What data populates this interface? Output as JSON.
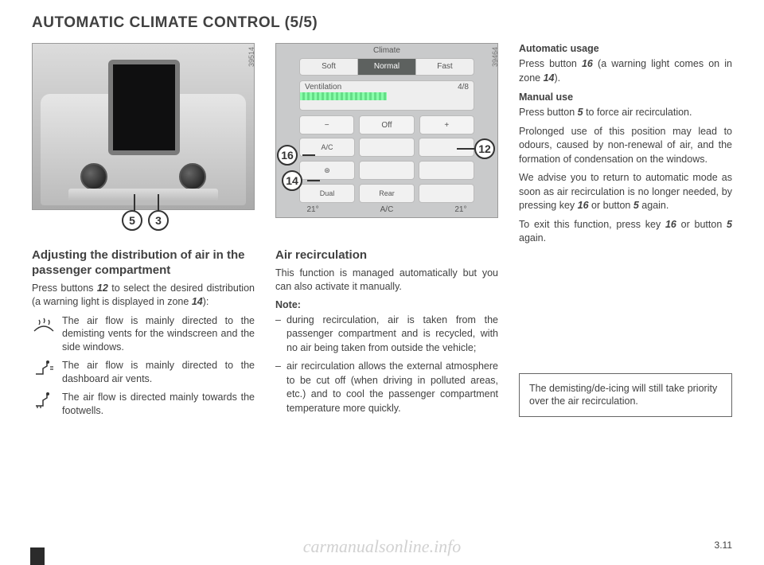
{
  "page": {
    "title": "AUTOMATIC CLIMATE CONTROL (5/5)",
    "number": "3.11",
    "watermark": "carmanualsonline.info"
  },
  "fig_photo": {
    "tag": "39514",
    "callouts": {
      "c5": "5",
      "c3": "3"
    }
  },
  "fig_screen": {
    "tag": "39464",
    "title": "Climate",
    "tabs": {
      "soft": "Soft",
      "normal": "Normal",
      "fast": "Fast"
    },
    "vent": {
      "label": "Ventilation",
      "fraction": "4/8"
    },
    "offrow": {
      "minus": "−",
      "off": "Off",
      "plus": "+"
    },
    "gridLabels": {
      "ac": "A/C",
      "auto": "⊛",
      "dual": "Dual",
      "rear": "Rear"
    },
    "footer": {
      "tL": "21°",
      "tR": "21°",
      "mid": "A/C"
    },
    "callouts": {
      "c16": "16",
      "c12": "12",
      "c14": "14"
    }
  },
  "col1": {
    "heading": "Adjusting the distribution of air in the passenger compartment",
    "para": "Press buttons <span class=\"itnum\">12</span> to select the desired distribution (a warning light is displayed in zone <span class=\"itnum\">14</span>):",
    "r1": "The air flow is mainly directed to the demisting vents for the windscreen and the side windows.",
    "r2": "The air flow is mainly directed to the dashboard air vents.",
    "r3": "The air flow is directed mainly towards the footwells."
  },
  "col2": {
    "heading": "Air recirculation",
    "p1": "This function is managed automatically but you can also activate it manually.",
    "noteLabel": "Note:",
    "li1": "during recirculation, air is taken from the passenger compartment and is recycled, with no air being taken from outside the vehicle;",
    "li2": "air recirculation allows the external atmosphere to be cut off (when driving in polluted areas, etc.) and to cool the passenger compartment temperature more quickly."
  },
  "col3": {
    "h1": "Automatic usage",
    "p1": "Press button <span class=\"itnum\">16</span> (a warning light comes on in zone <span class=\"itnum\">14</span>).",
    "h2": "Manual use",
    "p2": "Press button <span class=\"itnum\">5</span> to force air recirculation.",
    "p3": "Prolonged use of this position may lead to odours, caused by non-renewal of air, and the formation of condensation on the windows.",
    "p4": "We advise you to return to automatic mode as soon as air recirculation is no longer needed, by pressing key <span class=\"itnum\">16</span> or button <span class=\"itnum\">5</span> again.",
    "p5": "To exit this function, press key <span class=\"itnum\">16</span> or button <span class=\"itnum\">5</span> again.",
    "boxnote": "The demisting/de-icing will still take priority over the air recirculation."
  }
}
